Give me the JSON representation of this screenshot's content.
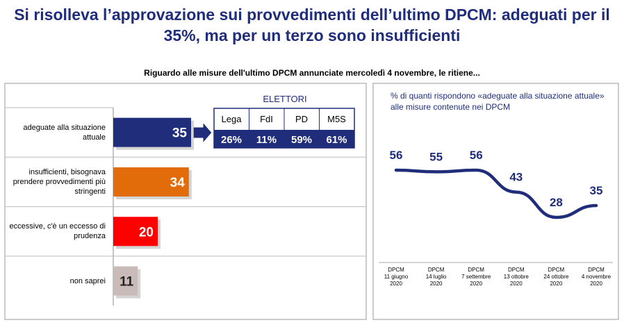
{
  "header": {
    "title": "Si risolleva l’approvazione sui provvedimenti dell’ultimo DPCM: adeguati per il 35%, ma per un terzo sono insufficienti",
    "subtitle": "Riguardo alle misure dell'ultimo DPCM annunciate mercoledì 4 novembre, le ritiene..."
  },
  "voters": {
    "title": "ELETTORI",
    "parties": [
      "Lega",
      "FdI",
      "PD",
      "M5S"
    ],
    "values": [
      26,
      11,
      59,
      61
    ],
    "value_labels": [
      "26%",
      "11%",
      "59%",
      "61%"
    ]
  },
  "chart_data": [
    {
      "type": "hbar",
      "categories": [
        "adeguate alla situazione attuale",
        "insufficienti, bisognava prendere provvedimenti più stringenti",
        "eccessive, c'è un eccesso di prudenza",
        "non saprei"
      ],
      "values": [
        35,
        34,
        20,
        11
      ],
      "colors": [
        "#1f2d7b",
        "#e36c0a",
        "#ff0000",
        "#c9bcb8"
      ]
    },
    {
      "type": "line",
      "title": "% di quanti rispondono «adeguate alla situazione attuale» alle misure contenute nei DPCM",
      "categories": [
        "DPCM\n11 giugno\n2020",
        "DPCM\n14 luglio\n2020",
        "DPCM\n7 settembre\n2020",
        "DPCM\n13 ottobre\n2020",
        "DPCM\n24 ottobre\n2020",
        "DPCM\n4 novembre\n2020"
      ],
      "values": [
        56,
        55,
        56,
        43,
        28,
        35
      ],
      "color": "#1f2d7b"
    }
  ]
}
